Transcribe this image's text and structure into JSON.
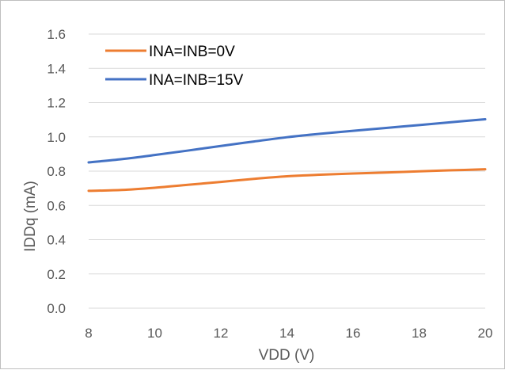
{
  "chart_data": {
    "type": "line",
    "title": "",
    "xlabel": "VDD (V)",
    "ylabel": "IDDq (mA)",
    "xlim": [
      8,
      20
    ],
    "ylim": [
      0.0,
      1.6
    ],
    "x_ticks": [
      "8",
      "10",
      "12",
      "14",
      "16",
      "18",
      "20"
    ],
    "y_ticks": [
      "0.0",
      "0.2",
      "0.4",
      "0.6",
      "0.8",
      "1.0",
      "1.2",
      "1.4",
      "1.6"
    ],
    "grid": "horizontal",
    "legend_position": "top-left",
    "series": [
      {
        "name": "INA=INB=0V",
        "color": "#ed7d31",
        "x": [
          8,
          9,
          10,
          11,
          12,
          13,
          14,
          15,
          16,
          17,
          18,
          19,
          20
        ],
        "y": [
          0.685,
          0.69,
          0.703,
          0.72,
          0.737,
          0.755,
          0.77,
          0.779,
          0.786,
          0.792,
          0.799,
          0.805,
          0.811
        ]
      },
      {
        "name": "INA=INB=15V",
        "color": "#4472c4",
        "x": [
          8,
          9,
          10,
          11,
          12,
          13,
          14,
          15,
          16,
          17,
          18,
          19,
          20
        ],
        "y": [
          0.851,
          0.87,
          0.894,
          0.92,
          0.947,
          0.973,
          0.998,
          1.018,
          1.035,
          1.052,
          1.069,
          1.086,
          1.103
        ]
      }
    ]
  }
}
